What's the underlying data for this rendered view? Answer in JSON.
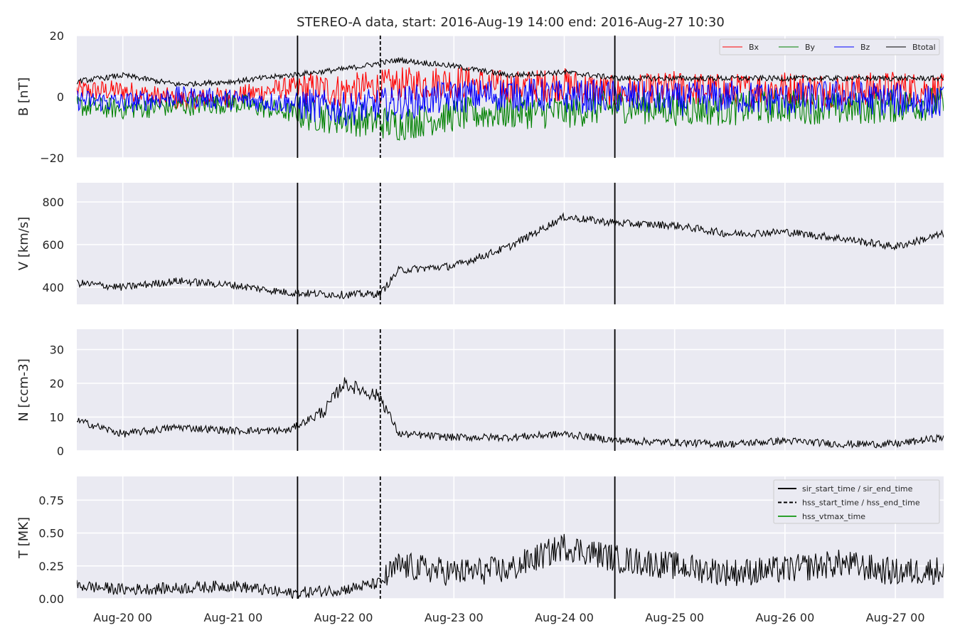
{
  "chart_data": {
    "type": "line",
    "title": "STEREO-A data, start: 2016-Aug-19 14:00  end: 2016-Aug-27 10:30",
    "x_range": [
      "2016-08-19 14:00",
      "2016-08-27 10:30"
    ],
    "x_ticks": [
      {
        "label": "Aug-20 00",
        "value": "2016-08-20 00:00"
      },
      {
        "label": "Aug-21 00",
        "value": "2016-08-21 00:00"
      },
      {
        "label": "Aug-22 00",
        "value": "2016-08-22 00:00"
      },
      {
        "label": "Aug-23 00",
        "value": "2016-08-23 00:00"
      },
      {
        "label": "Aug-24 00",
        "value": "2016-08-24 00:00"
      },
      {
        "label": "Aug-25 00",
        "value": "2016-08-25 00:00"
      },
      {
        "label": "Aug-26 00",
        "value": "2016-08-26 00:00"
      },
      {
        "label": "Aug-27 00",
        "value": "2016-08-27 00:00"
      }
    ],
    "grid": true,
    "event_lines": [
      {
        "time": "2016-08-21 14:00",
        "style": "solid"
      },
      {
        "time": "2016-08-22 08:00",
        "style": "dashed"
      },
      {
        "time": "2016-08-24 11:00",
        "style": "solid"
      }
    ],
    "panels": [
      {
        "id": "B",
        "ylabel": "B [nT]",
        "ylim": [
          -20,
          20
        ],
        "yticks": [
          {
            "label": "20",
            "value": 20
          },
          {
            "label": "0",
            "value": 0
          },
          {
            "label": "−20",
            "value": -20
          }
        ],
        "legend": "top-right",
        "series": [
          {
            "name": "Bx",
            "color": "#ff0000",
            "x": [
              "2016-08-19 14:00",
              "2016-08-20 00:00",
              "2016-08-20 12:00",
              "2016-08-21 00:00",
              "2016-08-21 12:00",
              "2016-08-22 00:00",
              "2016-08-22 12:00",
              "2016-08-23 00:00",
              "2016-08-23 12:00",
              "2016-08-24 00:00",
              "2016-08-24 12:00",
              "2016-08-25 00:00",
              "2016-08-25 12:00",
              "2016-08-26 00:00",
              "2016-08-26 12:00",
              "2016-08-27 00:00",
              "2016-08-27 10:30"
            ],
            "values": [
              2,
              2,
              -1,
              0,
              3,
              2,
              4,
              5,
              3,
              4,
              1,
              3,
              2,
              3,
              2,
              3,
              2
            ]
          },
          {
            "name": "By",
            "color": "#008000",
            "x": [
              "2016-08-19 14:00",
              "2016-08-20 00:00",
              "2016-08-20 12:00",
              "2016-08-21 00:00",
              "2016-08-21 12:00",
              "2016-08-22 00:00",
              "2016-08-22 12:00",
              "2016-08-23 00:00",
              "2016-08-23 12:00",
              "2016-08-24 00:00",
              "2016-08-24 12:00",
              "2016-08-25 00:00",
              "2016-08-25 12:00",
              "2016-08-26 00:00",
              "2016-08-26 12:00",
              "2016-08-27 00:00",
              "2016-08-27 10:30"
            ],
            "values": [
              -3,
              -4,
              -3,
              -2,
              -5,
              -7,
              -9,
              -6,
              -5,
              -5,
              -3,
              -4,
              -4,
              -3,
              -4,
              -3,
              -2
            ]
          },
          {
            "name": "Bz",
            "color": "#0000ff",
            "x": [
              "2016-08-19 14:00",
              "2016-08-20 00:00",
              "2016-08-20 12:00",
              "2016-08-21 00:00",
              "2016-08-21 12:00",
              "2016-08-22 00:00",
              "2016-08-22 12:00",
              "2016-08-23 00:00",
              "2016-08-23 12:00",
              "2016-08-24 00:00",
              "2016-08-24 12:00",
              "2016-08-25 00:00",
              "2016-08-25 12:00",
              "2016-08-26 00:00",
              "2016-08-26 12:00",
              "2016-08-27 00:00",
              "2016-08-27 10:30"
            ],
            "values": [
              -1,
              -2,
              0,
              -1,
              -2,
              -4,
              -2,
              0,
              1,
              0,
              0,
              -1,
              0,
              -1,
              0,
              -1,
              -2
            ]
          },
          {
            "name": "Btotal",
            "color": "#000000",
            "x": [
              "2016-08-19 14:00",
              "2016-08-20 00:00",
              "2016-08-20 12:00",
              "2016-08-21 00:00",
              "2016-08-21 12:00",
              "2016-08-22 00:00",
              "2016-08-22 12:00",
              "2016-08-23 00:00",
              "2016-08-23 12:00",
              "2016-08-24 00:00",
              "2016-08-24 12:00",
              "2016-08-25 00:00",
              "2016-08-25 12:00",
              "2016-08-26 00:00",
              "2016-08-26 12:00",
              "2016-08-27 00:00",
              "2016-08-27 10:30"
            ],
            "values": [
              5,
              7,
              4,
              5,
              7,
              9,
              12,
              10,
              7,
              8,
              6,
              6,
              6,
              6,
              6,
              6,
              6
            ]
          }
        ]
      },
      {
        "id": "V",
        "ylabel": "V [km/s]",
        "ylim": [
          320,
          890
        ],
        "yticks": [
          {
            "label": "800",
            "value": 800
          },
          {
            "label": "600",
            "value": 600
          },
          {
            "label": "400",
            "value": 400
          }
        ],
        "series": [
          {
            "name": "",
            "color": "#000000",
            "x": [
              "2016-08-19 14:00",
              "2016-08-20 00:00",
              "2016-08-20 12:00",
              "2016-08-21 00:00",
              "2016-08-21 12:00",
              "2016-08-22 00:00",
              "2016-08-22 08:00",
              "2016-08-22 12:00",
              "2016-08-23 00:00",
              "2016-08-23 12:00",
              "2016-08-24 00:00",
              "2016-08-24 12:00",
              "2016-08-25 00:00",
              "2016-08-25 12:00",
              "2016-08-26 00:00",
              "2016-08-26 12:00",
              "2016-08-27 00:00",
              "2016-08-27 10:30"
            ],
            "values": [
              420,
              400,
              430,
              410,
              375,
              365,
              370,
              480,
              500,
              590,
              730,
              700,
              690,
              650,
              660,
              630,
              590,
              650
            ]
          }
        ]
      },
      {
        "id": "N",
        "ylabel": "N [ccm-3]",
        "ylim": [
          0,
          36
        ],
        "yticks": [
          {
            "label": "30",
            "value": 30
          },
          {
            "label": "20",
            "value": 20
          },
          {
            "label": "10",
            "value": 10
          },
          {
            "label": "0",
            "value": 0
          }
        ],
        "series": [
          {
            "name": "",
            "color": "#000000",
            "x": [
              "2016-08-19 14:00",
              "2016-08-20 00:00",
              "2016-08-20 12:00",
              "2016-08-21 00:00",
              "2016-08-21 12:00",
              "2016-08-21 20:00",
              "2016-08-22 00:00",
              "2016-08-22 08:00",
              "2016-08-22 12:00",
              "2016-08-23 00:00",
              "2016-08-23 12:00",
              "2016-08-24 00:00",
              "2016-08-24 12:00",
              "2016-08-25 00:00",
              "2016-08-25 12:00",
              "2016-08-26 00:00",
              "2016-08-26 12:00",
              "2016-08-27 00:00",
              "2016-08-27 10:30"
            ],
            "values": [
              9,
              5,
              7,
              6,
              6,
              12,
              20,
              16,
              5,
              4,
              4,
              5,
              3,
              2.5,
              2,
              3,
              2,
              2,
              4
            ]
          }
        ]
      },
      {
        "id": "T",
        "ylabel": "T [MK]",
        "ylim": [
          0,
          0.93
        ],
        "yticks": [
          {
            "label": "0.75",
            "value": 0.75
          },
          {
            "label": "0.50",
            "value": 0.5
          },
          {
            "label": "0.25",
            "value": 0.25
          },
          {
            "label": "0.00",
            "value": 0
          }
        ],
        "legend": "top-right",
        "legend_entries": [
          {
            "label": "sir_start_time / sir_end_time",
            "color": "#000000",
            "style": "solid"
          },
          {
            "label": "hss_start_time / hss_end_time",
            "color": "#000000",
            "style": "dashed"
          },
          {
            "label": "hss_vtmax_time",
            "color": "#2ca02c",
            "style": "solid"
          }
        ],
        "series": [
          {
            "name": "",
            "color": "#000000",
            "x": [
              "2016-08-19 14:00",
              "2016-08-20 00:00",
              "2016-08-20 12:00",
              "2016-08-21 00:00",
              "2016-08-21 12:00",
              "2016-08-22 00:00",
              "2016-08-22 08:00",
              "2016-08-22 12:00",
              "2016-08-23 00:00",
              "2016-08-23 12:00",
              "2016-08-24 00:00",
              "2016-08-24 12:00",
              "2016-08-25 00:00",
              "2016-08-25 12:00",
              "2016-08-26 00:00",
              "2016-08-26 12:00",
              "2016-08-27 00:00",
              "2016-08-27 10:30"
            ],
            "values": [
              0.1,
              0.07,
              0.08,
              0.1,
              0.04,
              0.07,
              0.12,
              0.25,
              0.2,
              0.22,
              0.4,
              0.3,
              0.25,
              0.2,
              0.22,
              0.27,
              0.2,
              0.22
            ]
          }
        ]
      }
    ]
  }
}
